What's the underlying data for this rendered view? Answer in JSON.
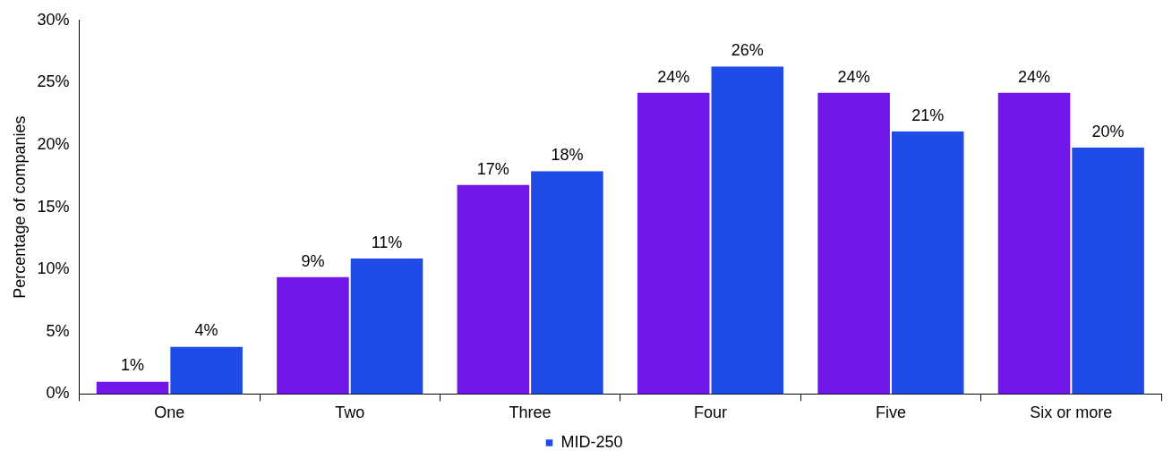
{
  "chart_data": {
    "type": "bar",
    "ylabel": "Percentage of companies",
    "categories": [
      "One",
      "Two",
      "Three",
      "Four",
      "Five",
      "Six or more"
    ],
    "series": [
      {
        "color": "#7117e9",
        "values": [
          1.0,
          9.4,
          16.8,
          24.2,
          24.2,
          24.2
        ],
        "value_labels": [
          "1%",
          "9%",
          "17%",
          "24%",
          "24%",
          "24%"
        ]
      },
      {
        "name": "MID-250",
        "color": "#1f4ce6",
        "values": [
          3.8,
          10.9,
          17.9,
          26.3,
          21.1,
          19.8
        ],
        "value_labels": [
          "4%",
          "11%",
          "18%",
          "26%",
          "21%",
          "20%"
        ]
      }
    ],
    "ylim": [
      0,
      30
    ],
    "yticks": [
      {
        "value": 0,
        "label": "0%"
      },
      {
        "value": 5,
        "label": "5%"
      },
      {
        "value": 10,
        "label": "10%"
      },
      {
        "value": 15,
        "label": "15%"
      },
      {
        "value": 20,
        "label": "20%"
      },
      {
        "value": 25,
        "label": "25%"
      },
      {
        "value": 30,
        "label": "30%"
      }
    ],
    "grid": false,
    "legend": "bottom"
  }
}
